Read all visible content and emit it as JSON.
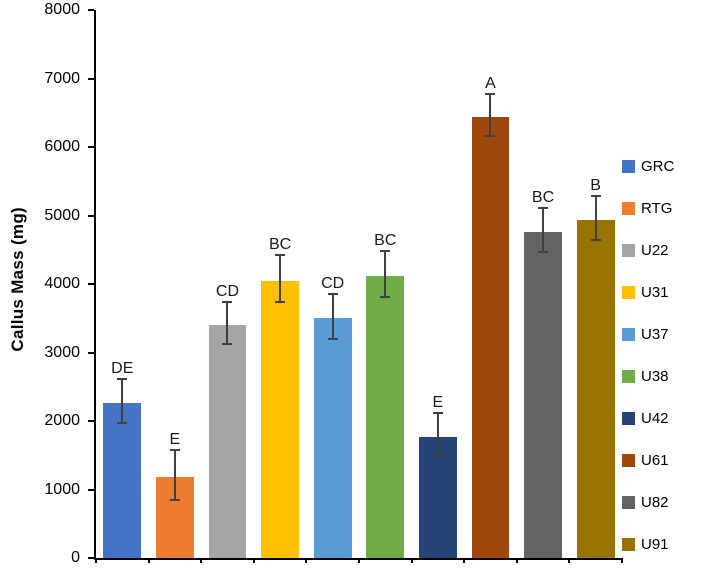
{
  "chart_data": {
    "type": "bar",
    "title": "",
    "xlabel": "",
    "ylabel": "Callus Mass (mg)",
    "ylim": [
      0,
      8000
    ],
    "yticks": [
      0,
      1000,
      2000,
      3000,
      4000,
      5000,
      6000,
      7000,
      8000
    ],
    "grid": false,
    "legend_position": "right",
    "categories": [
      "GRC",
      "RTG",
      "U22",
      "U31",
      "U37",
      "U38",
      "U42",
      "U61",
      "U82",
      "U91"
    ],
    "values": [
      2260,
      1180,
      3400,
      4050,
      3500,
      4120,
      1770,
      6440,
      4760,
      4940
    ],
    "errors": [
      310,
      350,
      290,
      330,
      310,
      320,
      300,
      290,
      300,
      305
    ],
    "bar_labels": [
      "DE",
      "E",
      "CD",
      "BC",
      "CD",
      "BC",
      "E",
      "A",
      "BC",
      "B"
    ],
    "colors": [
      "#4472C4",
      "#ED7D31",
      "#A5A5A5",
      "#FFC000",
      "#5B9BD5",
      "#70AD47",
      "#264478",
      "#9E480E",
      "#636363",
      "#997300"
    ],
    "error_bar_color": "#404040",
    "axis_color": "#000000"
  }
}
